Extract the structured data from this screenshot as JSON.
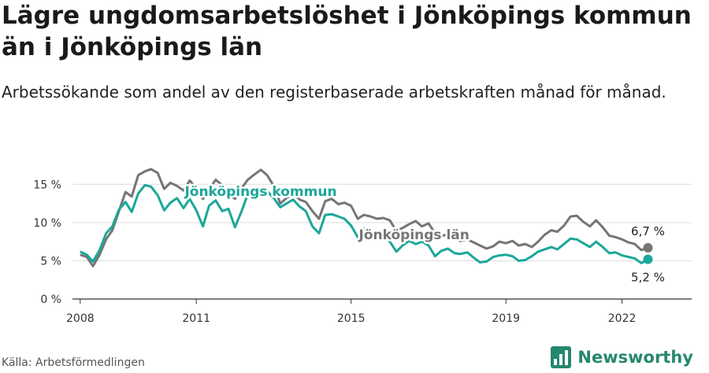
{
  "title": "Lägre ungdomsarbetslöshet i Jönköpings kommun än i Jönköpings län",
  "subtitle": "Arbetssökande som andel av den registerbaserade arbetskraften månad för månad.",
  "source": "Källa: Arbetsförmedlingen",
  "brand": "Newsworthy",
  "colors": {
    "kommun": "#1ba799",
    "lan": "#757575",
    "grid": "#dddddd",
    "brand": "#26876f"
  },
  "chart_data": {
    "type": "line",
    "xlabel": "",
    "ylabel": "",
    "ylim": [
      0,
      17.5
    ],
    "yticks": [
      0,
      5,
      10,
      15
    ],
    "ytick_labels": [
      "0 %",
      "5 %",
      "10 %",
      "15 %"
    ],
    "xlim": [
      2007.8,
      2023.8
    ],
    "xticks": [
      2008,
      2011,
      2015,
      2019,
      2022
    ],
    "xtick_labels": [
      "2008",
      "2011",
      "2015",
      "2019",
      "2022"
    ],
    "grid": true,
    "series": [
      {
        "name": "Jönköpings län",
        "key": "lan",
        "end_label": "6,7 %",
        "x": [
          2008.0,
          2008.17,
          2008.33,
          2008.5,
          2008.67,
          2008.83,
          2009.0,
          2009.17,
          2009.33,
          2009.5,
          2009.67,
          2009.83,
          2010.0,
          2010.17,
          2010.33,
          2010.5,
          2010.67,
          2010.83,
          2011.0,
          2011.17,
          2011.33,
          2011.5,
          2011.67,
          2011.83,
          2012.0,
          2012.17,
          2012.33,
          2012.5,
          2012.67,
          2012.83,
          2013.0,
          2013.17,
          2013.33,
          2013.5,
          2013.67,
          2013.83,
          2014.0,
          2014.17,
          2014.33,
          2014.5,
          2014.67,
          2014.83,
          2015.0,
          2015.17,
          2015.33,
          2015.5,
          2015.67,
          2015.83,
          2016.0,
          2016.17,
          2016.33,
          2016.5,
          2016.67,
          2016.83,
          2017.0,
          2017.17,
          2017.33,
          2017.5,
          2017.67,
          2017.83,
          2018.0,
          2018.17,
          2018.33,
          2018.5,
          2018.67,
          2018.83,
          2019.0,
          2019.17,
          2019.33,
          2019.5,
          2019.67,
          2019.83,
          2020.0,
          2020.17,
          2020.33,
          2020.5,
          2020.67,
          2020.83,
          2021.0,
          2021.17,
          2021.33,
          2021.5,
          2021.67,
          2021.83,
          2022.0,
          2022.17,
          2022.33,
          2022.5,
          2022.67
        ],
        "y": [
          5.8,
          5.5,
          4.3,
          5.8,
          7.8,
          9.0,
          11.5,
          14.0,
          13.4,
          16.2,
          16.7,
          17.0,
          16.5,
          14.4,
          15.2,
          14.8,
          14.2,
          15.5,
          14.5,
          13.1,
          14.4,
          15.6,
          14.9,
          13.7,
          13.1,
          14.5,
          15.6,
          16.3,
          16.9,
          16.2,
          14.8,
          12.5,
          13.2,
          13.8,
          13.0,
          12.7,
          11.5,
          10.5,
          12.8,
          13.1,
          12.4,
          12.6,
          12.2,
          10.5,
          11.0,
          10.8,
          10.5,
          10.6,
          10.3,
          8.9,
          9.3,
          9.8,
          10.2,
          9.5,
          9.9,
          8.6,
          8.2,
          8.5,
          7.9,
          7.6,
          7.8,
          7.4,
          7.0,
          6.6,
          6.9,
          7.5,
          7.3,
          7.6,
          7.0,
          7.2,
          6.8,
          7.5,
          8.4,
          9.0,
          8.8,
          9.6,
          10.8,
          10.9,
          10.1,
          9.5,
          10.3,
          9.4,
          8.3,
          8.1,
          7.8,
          7.4,
          7.2,
          6.4,
          6.7
        ]
      },
      {
        "name": "Jönköpings kommun",
        "key": "kommun",
        "end_label": "5,2 %",
        "x": [
          2008.0,
          2008.17,
          2008.33,
          2008.5,
          2008.67,
          2008.83,
          2009.0,
          2009.17,
          2009.33,
          2009.5,
          2009.67,
          2009.83,
          2010.0,
          2010.17,
          2010.33,
          2010.5,
          2010.67,
          2010.83,
          2011.0,
          2011.17,
          2011.33,
          2011.5,
          2011.67,
          2011.83,
          2012.0,
          2012.17,
          2012.33,
          2012.5,
          2012.67,
          2012.83,
          2013.0,
          2013.17,
          2013.33,
          2013.5,
          2013.67,
          2013.83,
          2014.0,
          2014.17,
          2014.33,
          2014.5,
          2014.67,
          2014.83,
          2015.0,
          2015.17,
          2015.33,
          2015.5,
          2015.67,
          2015.83,
          2016.0,
          2016.17,
          2016.33,
          2016.5,
          2016.67,
          2016.83,
          2017.0,
          2017.17,
          2017.33,
          2017.5,
          2017.67,
          2017.83,
          2018.0,
          2018.17,
          2018.33,
          2018.5,
          2018.67,
          2018.83,
          2019.0,
          2019.17,
          2019.33,
          2019.5,
          2019.67,
          2019.83,
          2020.0,
          2020.17,
          2020.33,
          2020.5,
          2020.67,
          2020.83,
          2021.0,
          2021.17,
          2021.33,
          2021.5,
          2021.67,
          2021.83,
          2022.0,
          2022.17,
          2022.33,
          2022.5,
          2022.67
        ],
        "y": [
          6.2,
          5.8,
          4.9,
          6.4,
          8.6,
          9.5,
          11.7,
          12.7,
          11.4,
          13.8,
          14.9,
          14.7,
          13.6,
          11.6,
          12.6,
          13.2,
          11.9,
          13.1,
          11.6,
          9.5,
          12.2,
          12.9,
          11.5,
          11.8,
          9.4,
          11.5,
          13.7,
          14.2,
          13.5,
          14.1,
          13.2,
          12.0,
          12.5,
          13.0,
          12.1,
          11.5,
          9.5,
          8.6,
          11.0,
          11.1,
          10.8,
          10.5,
          9.6,
          8.1,
          9.2,
          8.5,
          8.4,
          8.4,
          7.5,
          6.2,
          7.0,
          7.6,
          7.2,
          7.5,
          7.0,
          5.6,
          6.3,
          6.6,
          6.0,
          5.9,
          6.1,
          5.4,
          4.8,
          4.9,
          5.5,
          5.7,
          5.8,
          5.6,
          5.0,
          5.1,
          5.6,
          6.2,
          6.5,
          6.8,
          6.5,
          7.2,
          7.9,
          7.8,
          7.3,
          6.8,
          7.5,
          6.8,
          6.0,
          6.1,
          5.7,
          5.5,
          5.3,
          4.7,
          5.2
        ]
      }
    ]
  }
}
